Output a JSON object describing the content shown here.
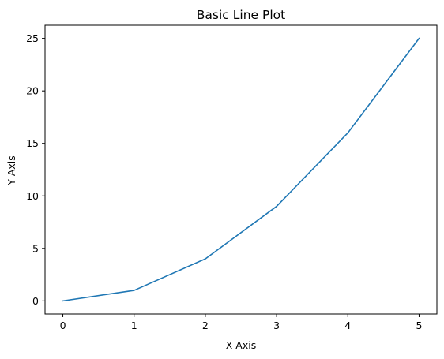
{
  "chart_data": {
    "type": "line",
    "title": "Basic Line Plot",
    "xlabel": "X Axis",
    "ylabel": "Y Axis",
    "x": [
      0,
      1,
      2,
      3,
      4,
      5
    ],
    "series": [
      {
        "values": [
          0,
          1,
          4,
          9,
          16,
          25
        ],
        "color": "#1f77b4"
      }
    ],
    "xlim": [
      -0.25,
      5.25
    ],
    "ylim": [
      -1.25,
      26.25
    ],
    "xticks": [
      0,
      1,
      2,
      3,
      4,
      5
    ],
    "yticks": [
      0,
      5,
      10,
      15,
      20,
      25
    ],
    "grid": false
  }
}
